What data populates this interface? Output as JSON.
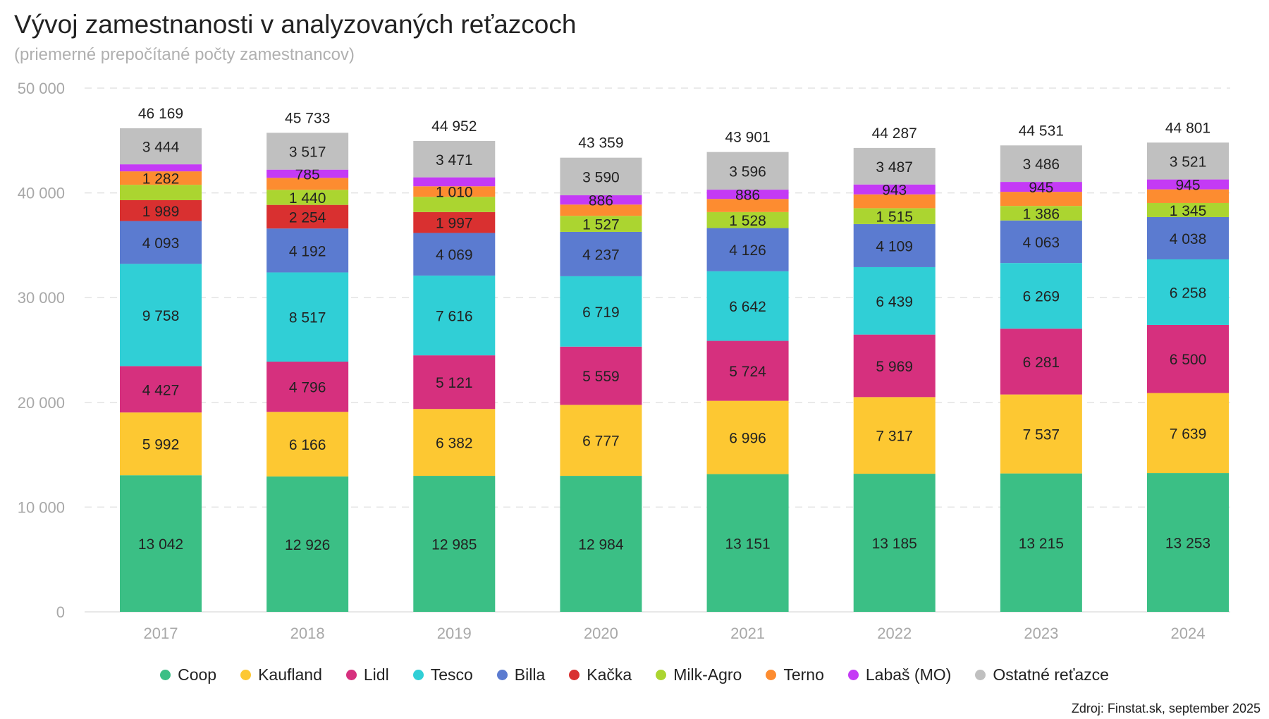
{
  "chart_data": {
    "type": "bar",
    "stacked": true,
    "title": "Vývoj zamestnanosti v analyzovaných reťazcoch",
    "subtitle": "(priemerné prepočítané počty zamestnancov)",
    "xlabel": "",
    "ylabel": "",
    "ylim": [
      0,
      50000
    ],
    "yticks": [
      "0",
      "10 000",
      "20 000",
      "30 000",
      "40 000",
      "50 000"
    ],
    "ytick_values": [
      0,
      10000,
      20000,
      30000,
      40000,
      50000
    ],
    "grid": true,
    "legend_position": "bottom",
    "categories": [
      "2017",
      "2018",
      "2019",
      "2020",
      "2021",
      "2022",
      "2023",
      "2024"
    ],
    "totals": [
      46169,
      45733,
      44952,
      43359,
      43901,
      44287,
      44531,
      44801
    ],
    "total_labels": [
      "46 169",
      "45 733",
      "44 952",
      "43 359",
      "43 901",
      "44 287",
      "44 531",
      "44 801"
    ],
    "series": [
      {
        "name": "Coop",
        "color": "#3bbf85",
        "values": [
          13042,
          12926,
          12985,
          12984,
          13151,
          13185,
          13215,
          13253
        ],
        "labels": [
          "13 042",
          "12 926",
          "12 985",
          "12 984",
          "13 151",
          "13 185",
          "13 215",
          "13 253"
        ]
      },
      {
        "name": "Kaufland",
        "color": "#fdc832",
        "values": [
          5992,
          6166,
          6382,
          6777,
          6996,
          7317,
          7537,
          7639
        ],
        "labels": [
          "5 992",
          "6 166",
          "6 382",
          "6 777",
          "6 996",
          "7 317",
          "7 537",
          "7 639"
        ]
      },
      {
        "name": "Lidl",
        "color": "#d6307e",
        "values": [
          4427,
          4796,
          5121,
          5559,
          5724,
          5969,
          6281,
          6500
        ],
        "labels": [
          "4 427",
          "4 796",
          "5 121",
          "5 559",
          "5 724",
          "5 969",
          "6 281",
          "6 500"
        ]
      },
      {
        "name": "Tesco",
        "color": "#30cfd6",
        "values": [
          9758,
          8517,
          7616,
          6719,
          6642,
          6439,
          6269,
          6258
        ],
        "labels": [
          "9 758",
          "8 517",
          "7 616",
          "6 719",
          "6 642",
          "6 439",
          "6 269",
          "6 258"
        ]
      },
      {
        "name": "Billa",
        "color": "#5b7bd0",
        "values": [
          4093,
          4192,
          4069,
          4237,
          4126,
          4109,
          4063,
          4038
        ],
        "labels": [
          "4 093",
          "4 192",
          "4 069",
          "4 237",
          "4 126",
          "4 109",
          "4 063",
          "4 038"
        ]
      },
      {
        "name": "Kačka",
        "color": "#d93030",
        "values": [
          1989,
          2254,
          1997,
          0,
          0,
          0,
          0,
          0
        ],
        "labels": [
          "1 989",
          "2 254",
          "1 997",
          "",
          "",
          "",
          "",
          ""
        ]
      },
      {
        "name": "Milk-Agro",
        "color": "#abd530",
        "values": [
          1470,
          1440,
          1450,
          1527,
          1528,
          1515,
          1386,
          1345
        ],
        "labels": [
          "",
          "1 440",
          "",
          "1 527",
          "1 528",
          "1 515",
          "1 386",
          "1 345"
        ]
      },
      {
        "name": "Terno",
        "color": "#fd8c30",
        "values": [
          1282,
          1140,
          1010,
          1080,
          1252,
          1323,
          1349,
          1302
        ],
        "labels": [
          "1 282",
          "",
          "1 010",
          "",
          "",
          "",
          "",
          ""
        ]
      },
      {
        "name": "Labaš (MO)",
        "color": "#c43af5",
        "values": [
          672,
          785,
          851,
          886,
          886,
          943,
          945,
          945
        ],
        "labels": [
          "",
          "785",
          "",
          "886",
          "886",
          "943",
          "945",
          "945"
        ]
      },
      {
        "name": "Ostatné reťazce",
        "color": "#c0c0c0",
        "values": [
          3444,
          3517,
          3471,
          3590,
          3596,
          3487,
          3486,
          3521
        ],
        "labels": [
          "3 444",
          "3 517",
          "3 471",
          "3 590",
          "3 596",
          "3 487",
          "3 486",
          "3 521"
        ]
      }
    ],
    "source": "Zdroj: Finstat.sk, september 2025"
  }
}
